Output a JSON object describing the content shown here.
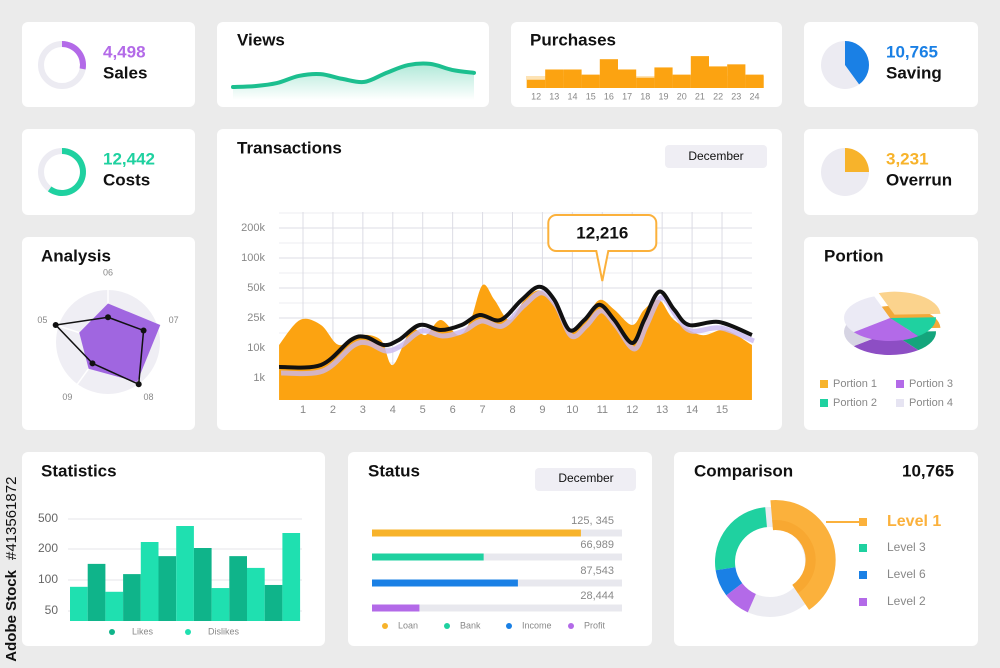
{
  "watermark": {
    "brand": "Adobe Stock",
    "id": "#413561872"
  },
  "sales": {
    "value": "4,498",
    "label": "Sales",
    "type": "ring",
    "percent": 28,
    "color": "#b36ae8"
  },
  "costs": {
    "value": "12,442",
    "label": "Costs",
    "type": "ring",
    "percent": 60,
    "color": "#1fd1a0"
  },
  "saving": {
    "value": "10,765",
    "label": "Saving",
    "type": "pie",
    "percent": 40,
    "color": "#1a80e5"
  },
  "overrun": {
    "value": "3,231",
    "label": "Overrun",
    "type": "pie",
    "percent": 25,
    "color": "#f7b32b"
  },
  "views": {
    "title": "Views",
    "chart": {
      "type": "line",
      "values": [
        1,
        1.3,
        2.3,
        4.7,
        5.3,
        3.7,
        2.7,
        5.7,
        8.3,
        8.7,
        6.7,
        5.7
      ],
      "ylim": [
        0,
        10
      ],
      "color": "#1cbf8f"
    }
  },
  "purchases": {
    "title": "Purchases",
    "chart": {
      "type": "bar",
      "categories": [
        "12",
        "13",
        "14",
        "15",
        "16",
        "17",
        "18",
        "19",
        "20",
        "21",
        "22",
        "23",
        "24"
      ],
      "values": [
        8,
        18,
        18,
        13,
        28,
        18,
        10,
        20,
        13,
        31,
        21,
        23,
        13
      ],
      "ylim": [
        0,
        35
      ],
      "color": "#fca311"
    }
  },
  "transactions": {
    "title": "Transactions",
    "dropdown": "December",
    "chart": {
      "type": "area-line",
      "series": [
        {
          "type": "area",
          "color": "#fca311",
          "x": [
            0.2,
            0.9,
            1.6,
            2.2,
            2.9,
            3.6,
            4.0,
            4.6,
            5.1,
            5.6,
            6.2,
            6.6,
            7.0,
            7.4,
            7.9,
            8.4,
            8.9,
            9.4,
            9.9,
            10.4,
            10.9,
            11.4,
            12.0,
            12.4,
            12.9,
            13.4,
            14.3,
            15.1,
            16.0
          ],
          "values": [
            11500,
            24000,
            21500,
            11500,
            16500,
            14000,
            4900,
            19000,
            16500,
            24000,
            16500,
            24000,
            55000,
            40000,
            24000,
            40000,
            48000,
            36000,
            19000,
            24000,
            40000,
            32000,
            21500,
            32000,
            40000,
            24000,
            16500,
            19000,
            11500
          ]
        },
        {
          "type": "line",
          "color": "#111111",
          "x": [
            0.2,
            1.6,
            2.6,
            3.1,
            3.7,
            4.2,
            4.9,
            5.6,
            6.3,
            6.9,
            7.6,
            8.3,
            8.9,
            9.4,
            9.9,
            10.4,
            10.9,
            11.4,
            12.0,
            12.4,
            12.9,
            13.4,
            13.9,
            14.9,
            16.0
          ],
          "values": [
            4300,
            4900,
            14000,
            15500,
            11500,
            14000,
            21500,
            19000,
            21500,
            27500,
            24000,
            40000,
            52000,
            40000,
            19000,
            24000,
            36000,
            24000,
            12500,
            24000,
            47000,
            32000,
            21500,
            23000,
            16500
          ]
        }
      ],
      "xlim": [
        0.2,
        16
      ],
      "xticks": [
        1,
        2,
        3,
        4,
        5,
        6,
        7,
        8,
        9,
        10,
        11,
        12,
        13,
        14,
        15
      ],
      "ylim": [
        0,
        200000
      ],
      "yticks": [
        {
          "value": 1000,
          "label": "1k"
        },
        {
          "value": 10000,
          "label": "10k"
        },
        {
          "value": 25000,
          "label": "25k"
        },
        {
          "value": 50000,
          "label": "50k"
        },
        {
          "value": 100000,
          "label": "100k"
        },
        {
          "value": 200000,
          "label": "200k"
        }
      ],
      "grid": true,
      "annotation": {
        "x": 11,
        "text": "12,216"
      }
    }
  },
  "analysis": {
    "title": "Analysis",
    "chart": {
      "type": "radar",
      "categories": [
        "06",
        "07",
        "08",
        "09",
        "05"
      ],
      "rlim": [
        0,
        100
      ],
      "series": [
        {
          "color": "#a066e0",
          "fill": true,
          "values": [
            70,
            100,
            90,
            60,
            55
          ]
        },
        {
          "color": "#111111",
          "fill": false,
          "values": [
            45,
            68,
            95,
            48,
            100
          ]
        }
      ]
    }
  },
  "portion": {
    "title": "Portion",
    "chart": {
      "type": "pie3d",
      "categories": [
        "Portion 1",
        "Portion 2",
        "Portion 3",
        "Portion 4"
      ],
      "values": [
        30,
        15,
        25,
        30
      ],
      "colors": [
        "#fbd38d",
        "#1fd1a0",
        "#b36ae8",
        "#ebeaf5"
      ],
      "legend_colors": [
        "#f7b32b",
        "#1fd1a0",
        "#b36ae8",
        "#e6e4f2"
      ]
    }
  },
  "statistics": {
    "title": "Statistics",
    "chart": {
      "type": "bar",
      "series": [
        {
          "name": "Likes",
          "color": "#0fb48a",
          "values": [
            152,
            119,
            177,
            210,
            177,
            92,
            null
          ]
        },
        {
          "name": "Dislikes",
          "color": "#1fe0b0",
          "values": [
            89,
            81,
            270,
            430,
            87,
            139,
            360
          ]
        }
      ],
      "ylim": [
        0,
        500
      ],
      "yticks": [
        50,
        100,
        200,
        500
      ],
      "grid": true
    }
  },
  "status": {
    "title": "Status",
    "dropdown": "December",
    "chart": {
      "type": "hbar",
      "xlim": [
        0,
        150000
      ],
      "categories": [
        "Loan",
        "Bank",
        "Income",
        "Profit"
      ],
      "values": [
        125345,
        66989,
        87543,
        28444
      ],
      "value_labels": [
        "125, 345",
        "66,989",
        "87,543",
        "28,444"
      ],
      "colors": [
        "#f7b32b",
        "#1fd1a0",
        "#1a80e5",
        "#b36ae8"
      ]
    }
  },
  "comparison": {
    "title": "Comparison",
    "value": "10,765",
    "chart": {
      "type": "donut",
      "categories": [
        "Level 1",
        "Level 3",
        "Level 6",
        "Level 2"
      ],
      "values": [
        42,
        26,
        8,
        8
      ],
      "colors": [
        "#fbb13c",
        "#1fd1a0",
        "#1a80e5",
        "#b36ae8"
      ]
    }
  }
}
